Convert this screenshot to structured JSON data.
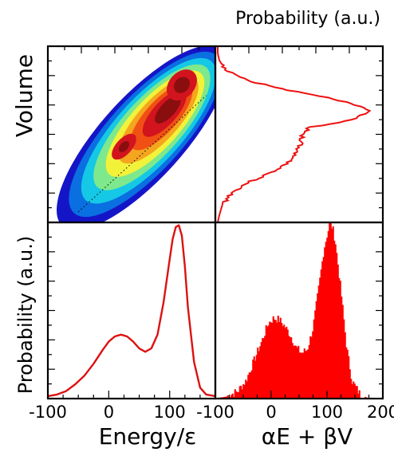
{
  "figure": {
    "top_axis_label": "Probability (a.u.)",
    "left_axis_label_top": "Volume",
    "left_axis_label_bottom": "Probability (a.u.)",
    "bottom_axis_label_left": "Energy/ε",
    "bottom_axis_label_right": "αE + βV"
  },
  "chart_data": [
    {
      "panel": "top-left",
      "type": "heatmap",
      "xlabel": "",
      "ylabel": "Volume",
      "xlim": [
        -100,
        175
      ],
      "description_visible": "2D joint distribution of energy and volume, elongated along a diagonal, two maxima",
      "peaks": [
        {
          "x": 25,
          "y_rel": 0.43
        },
        {
          "x": 120,
          "y_rel": 0.78
        }
      ],
      "dotted_line": {
        "from_x": -50,
        "to_x": 160
      },
      "colors": [
        "#1515c8",
        "#0a6fe0",
        "#14c8e6",
        "#7ee88c",
        "#f2f23a",
        "#f5a51e",
        "#f05014",
        "#d2141e",
        "#8a0e0e"
      ]
    },
    {
      "panel": "top-right",
      "type": "line",
      "orientation": "horizontal",
      "xlabel": "Probability (a.u.)",
      "ylabel": "",
      "color": "#ee1111",
      "points_y_rel": [
        0.0,
        0.04,
        0.1,
        0.16,
        0.22,
        0.28,
        0.34,
        0.4,
        0.43,
        0.46,
        0.5,
        0.54,
        0.57,
        0.6,
        0.64,
        0.68,
        0.72,
        0.76,
        0.8,
        0.84,
        0.88,
        0.92,
        0.96,
        1.0
      ],
      "points_prob": [
        0.0,
        0.01,
        0.03,
        0.08,
        0.18,
        0.34,
        0.46,
        0.52,
        0.53,
        0.54,
        0.55,
        0.6,
        0.8,
        0.92,
        0.98,
        0.86,
        0.64,
        0.4,
        0.22,
        0.1,
        0.04,
        0.01,
        0.0,
        0.0
      ]
    },
    {
      "panel": "bottom-left",
      "type": "line",
      "xlabel": "Energy/ε",
      "ylabel": "Probability (a.u.)",
      "xlim": [
        -100,
        175
      ],
      "xticks": [
        "-100",
        "0",
        "100"
      ],
      "xtick_values": [
        -100,
        0,
        100
      ],
      "color": "#dd1111",
      "x": [
        -100,
        -85,
        -70,
        -55,
        -40,
        -25,
        -10,
        0,
        10,
        20,
        30,
        40,
        50,
        60,
        70,
        80,
        90,
        100,
        105,
        110,
        115,
        120,
        125,
        130,
        140,
        150,
        160,
        175
      ],
      "y": [
        0.0,
        0.01,
        0.03,
        0.07,
        0.12,
        0.19,
        0.27,
        0.32,
        0.35,
        0.36,
        0.35,
        0.32,
        0.28,
        0.26,
        0.28,
        0.36,
        0.55,
        0.8,
        0.92,
        0.99,
        1.0,
        0.94,
        0.76,
        0.52,
        0.2,
        0.05,
        0.01,
        0.0
      ]
    },
    {
      "panel": "bottom-right",
      "type": "area",
      "xlabel": "αE + βV",
      "ylabel": "",
      "xlim": [
        -100,
        200
      ],
      "xticks": [
        "-100",
        "0",
        "100",
        "200"
      ],
      "xtick_values": [
        -100,
        0,
        100,
        200
      ],
      "color": "#ff0000",
      "x": [
        -100,
        -80,
        -60,
        -45,
        -30,
        -15,
        -5,
        5,
        15,
        25,
        35,
        45,
        55,
        65,
        75,
        85,
        95,
        105,
        110,
        115,
        125,
        135,
        145,
        160,
        175,
        200
      ],
      "y": [
        0.0,
        0.01,
        0.04,
        0.1,
        0.22,
        0.34,
        0.43,
        0.46,
        0.45,
        0.41,
        0.36,
        0.29,
        0.26,
        0.28,
        0.4,
        0.62,
        0.86,
        1.0,
        0.98,
        0.9,
        0.62,
        0.3,
        0.1,
        0.02,
        0.0,
        0.0
      ]
    }
  ]
}
